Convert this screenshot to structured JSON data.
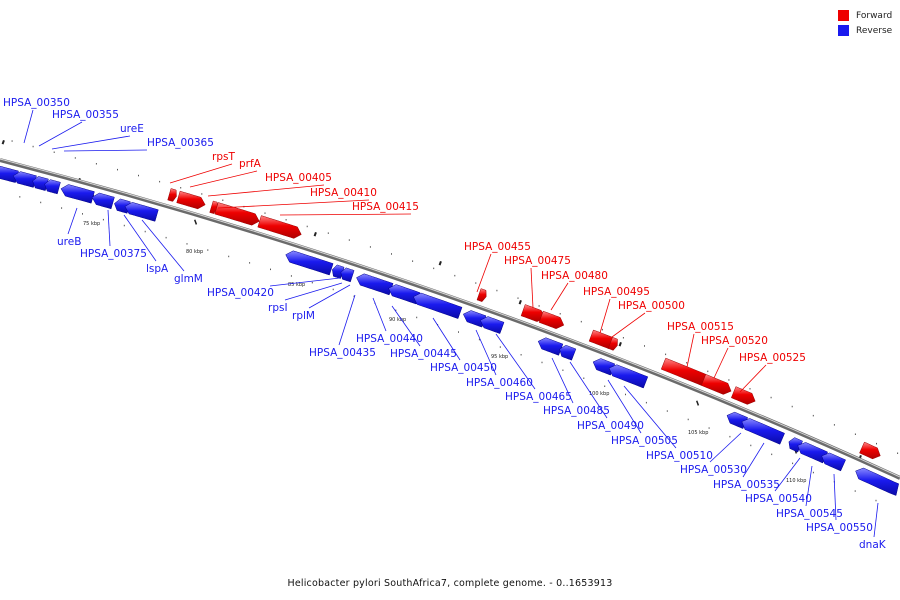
{
  "legend": {
    "forward": {
      "label": "Forward",
      "color": "#ee0000"
    },
    "reverse": {
      "label": "Reverse",
      "color": "#1a1aee"
    }
  },
  "caption": "Helicobacter pylori SouthAfrica7, complete genome. - 0..1653913",
  "ticks": [
    "75 kbp",
    "80 kbp",
    "85 kbp",
    "90 kbp",
    "95 kbp",
    "100 kbp",
    "105 kbp",
    "110 kbp"
  ],
  "forward_genes": [
    "rpsT",
    "prfA",
    "HPSA_00405",
    "HPSA_00410",
    "HPSA_00415",
    "HPSA_00455",
    "HPSA_00475",
    "HPSA_00480",
    "HPSA_00495",
    "HPSA_00500",
    "HPSA_00515",
    "HPSA_00520",
    "HPSA_00525"
  ],
  "reverse_genes_above": [
    "HPSA_00350",
    "HPSA_00355",
    "ureE",
    "HPSA_00365"
  ],
  "reverse_genes_below": [
    "ureB",
    "HPSA_00375",
    "lspA",
    "glmM",
    "HPSA_00420",
    "rpsI",
    "rplM",
    "HPSA_00435",
    "HPSA_00440",
    "HPSA_00445",
    "HPSA_00450",
    "HPSA_00460",
    "HPSA_00465",
    "HPSA_00485",
    "HPSA_00490",
    "HPSA_00505",
    "HPSA_00510",
    "HPSA_00530",
    "HPSA_00535",
    "HPSA_00540",
    "HPSA_00545",
    "HPSA_00550",
    "dnaK"
  ]
}
